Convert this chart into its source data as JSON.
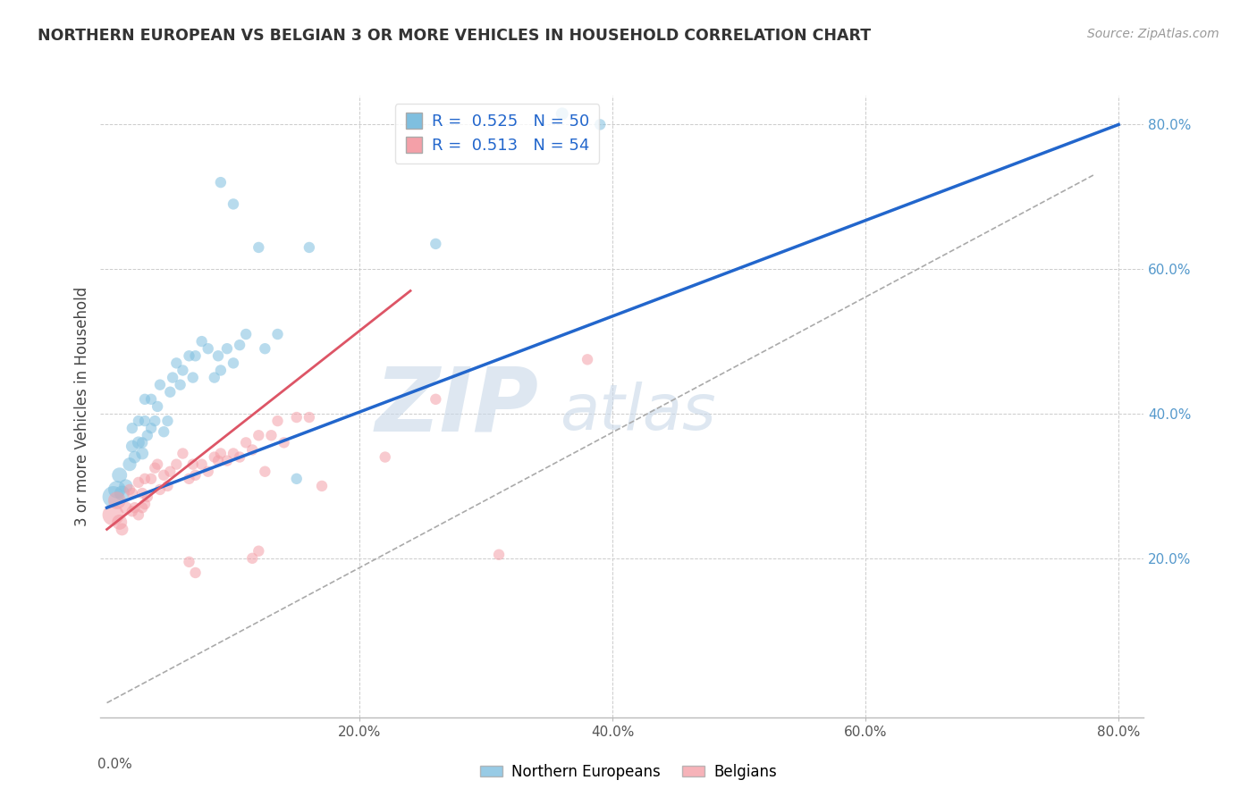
{
  "title": "NORTHERN EUROPEAN VS BELGIAN 3 OR MORE VEHICLES IN HOUSEHOLD CORRELATION CHART",
  "source": "Source: ZipAtlas.com",
  "ylabel": "3 or more Vehicles in Household",
  "xlim": [
    -0.005,
    0.82
  ],
  "ylim": [
    -0.02,
    0.84
  ],
  "legend_labels": [
    "Northern Europeans",
    "Belgians"
  ],
  "blue_R": "0.525",
  "blue_N": "50",
  "pink_R": "0.513",
  "pink_N": "54",
  "blue_color": "#7fbfdf",
  "pink_color": "#f4a0a8",
  "blue_line_color": "#2266cc",
  "pink_line_color": "#dd5566",
  "watermark_zip": "ZIP",
  "watermark_atlas": "atlas",
  "blue_scatter": [
    [
      0.005,
      0.285
    ],
    [
      0.008,
      0.295
    ],
    [
      0.01,
      0.315
    ],
    [
      0.012,
      0.29
    ],
    [
      0.015,
      0.3
    ],
    [
      0.018,
      0.33
    ],
    [
      0.02,
      0.355
    ],
    [
      0.02,
      0.38
    ],
    [
      0.022,
      0.34
    ],
    [
      0.025,
      0.36
    ],
    [
      0.025,
      0.39
    ],
    [
      0.028,
      0.345
    ],
    [
      0.028,
      0.36
    ],
    [
      0.03,
      0.39
    ],
    [
      0.03,
      0.42
    ],
    [
      0.032,
      0.37
    ],
    [
      0.035,
      0.38
    ],
    [
      0.035,
      0.42
    ],
    [
      0.038,
      0.39
    ],
    [
      0.04,
      0.41
    ],
    [
      0.042,
      0.44
    ],
    [
      0.045,
      0.375
    ],
    [
      0.048,
      0.39
    ],
    [
      0.05,
      0.43
    ],
    [
      0.052,
      0.45
    ],
    [
      0.055,
      0.47
    ],
    [
      0.058,
      0.44
    ],
    [
      0.06,
      0.46
    ],
    [
      0.065,
      0.48
    ],
    [
      0.068,
      0.45
    ],
    [
      0.07,
      0.48
    ],
    [
      0.075,
      0.5
    ],
    [
      0.08,
      0.49
    ],
    [
      0.085,
      0.45
    ],
    [
      0.088,
      0.48
    ],
    [
      0.09,
      0.46
    ],
    [
      0.095,
      0.49
    ],
    [
      0.1,
      0.47
    ],
    [
      0.105,
      0.495
    ],
    [
      0.11,
      0.51
    ],
    [
      0.12,
      0.63
    ],
    [
      0.125,
      0.49
    ],
    [
      0.135,
      0.51
    ],
    [
      0.15,
      0.31
    ],
    [
      0.16,
      0.63
    ],
    [
      0.09,
      0.72
    ],
    [
      0.1,
      0.69
    ],
    [
      0.26,
      0.635
    ],
    [
      0.36,
      0.815
    ],
    [
      0.39,
      0.8
    ]
  ],
  "pink_scatter": [
    [
      0.005,
      0.26
    ],
    [
      0.008,
      0.28
    ],
    [
      0.01,
      0.25
    ],
    [
      0.012,
      0.24
    ],
    [
      0.015,
      0.27
    ],
    [
      0.018,
      0.295
    ],
    [
      0.02,
      0.29
    ],
    [
      0.02,
      0.265
    ],
    [
      0.022,
      0.27
    ],
    [
      0.025,
      0.305
    ],
    [
      0.025,
      0.26
    ],
    [
      0.028,
      0.27
    ],
    [
      0.028,
      0.29
    ],
    [
      0.03,
      0.31
    ],
    [
      0.03,
      0.275
    ],
    [
      0.032,
      0.285
    ],
    [
      0.035,
      0.31
    ],
    [
      0.038,
      0.325
    ],
    [
      0.04,
      0.33
    ],
    [
      0.042,
      0.295
    ],
    [
      0.045,
      0.315
    ],
    [
      0.048,
      0.3
    ],
    [
      0.05,
      0.32
    ],
    [
      0.055,
      0.33
    ],
    [
      0.06,
      0.345
    ],
    [
      0.065,
      0.31
    ],
    [
      0.068,
      0.33
    ],
    [
      0.07,
      0.315
    ],
    [
      0.075,
      0.33
    ],
    [
      0.08,
      0.32
    ],
    [
      0.085,
      0.34
    ],
    [
      0.088,
      0.335
    ],
    [
      0.09,
      0.345
    ],
    [
      0.095,
      0.335
    ],
    [
      0.1,
      0.345
    ],
    [
      0.105,
      0.34
    ],
    [
      0.11,
      0.36
    ],
    [
      0.115,
      0.35
    ],
    [
      0.12,
      0.37
    ],
    [
      0.125,
      0.32
    ],
    [
      0.13,
      0.37
    ],
    [
      0.135,
      0.39
    ],
    [
      0.14,
      0.36
    ],
    [
      0.15,
      0.395
    ],
    [
      0.16,
      0.395
    ],
    [
      0.17,
      0.3
    ],
    [
      0.22,
      0.34
    ],
    [
      0.26,
      0.42
    ],
    [
      0.31,
      0.205
    ],
    [
      0.38,
      0.475
    ],
    [
      0.065,
      0.195
    ],
    [
      0.07,
      0.18
    ],
    [
      0.115,
      0.2
    ],
    [
      0.12,
      0.21
    ]
  ],
  "blue_scatter_sizes": [
    300,
    200,
    150,
    150,
    120,
    120,
    100,
    80,
    100,
    100,
    80,
    100,
    80,
    80,
    80,
    80,
    80,
    80,
    80,
    80,
    80,
    80,
    80,
    80,
    80,
    80,
    80,
    80,
    80,
    80,
    80,
    80,
    80,
    80,
    80,
    80,
    80,
    80,
    80,
    80,
    80,
    80,
    80,
    80,
    80,
    80,
    80,
    80,
    100,
    80
  ],
  "pink_scatter_sizes": [
    300,
    200,
    150,
    100,
    100,
    80,
    80,
    80,
    80,
    80,
    80,
    80,
    80,
    80,
    80,
    80,
    80,
    80,
    80,
    80,
    80,
    80,
    80,
    80,
    80,
    80,
    80,
    80,
    80,
    80,
    80,
    80,
    80,
    80,
    80,
    80,
    80,
    80,
    80,
    80,
    80,
    80,
    80,
    80,
    80,
    80,
    80,
    80,
    80,
    80,
    80,
    80,
    80,
    80
  ]
}
